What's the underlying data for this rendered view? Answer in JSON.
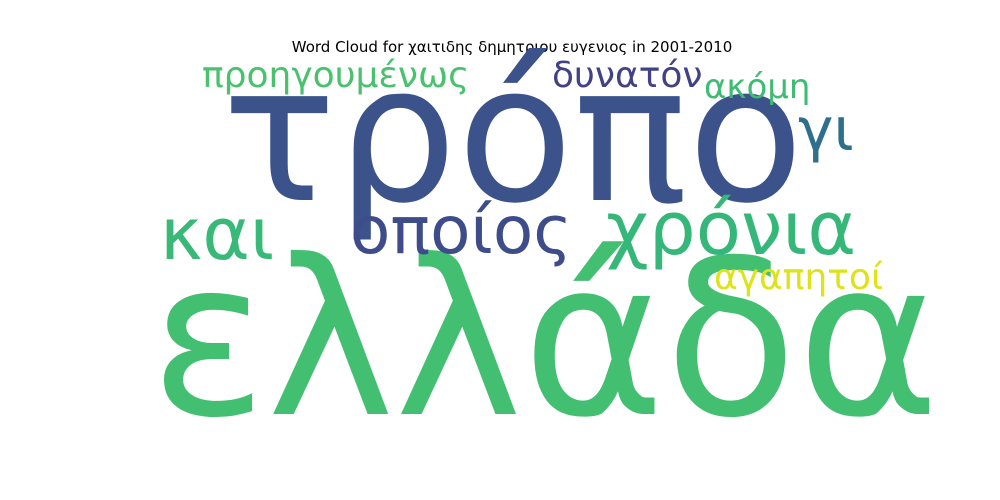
{
  "title": "Word Cloud for χαιτιδης δημητριου ευγενιος in 2001-2010",
  "words": [
    {
      "text": "ελλάδα",
      "color": "#43bf71"
    },
    {
      "text": "τρόπο",
      "color": "#3b528b"
    },
    {
      "text": "χρόνια",
      "color": "#35b779"
    },
    {
      "text": "οποίος",
      "color": "#3e4c8a"
    },
    {
      "text": "και",
      "color": "#38b977"
    },
    {
      "text": "γι",
      "color": "#2e6f8e"
    },
    {
      "text": "προηγουμένως",
      "color": "#4ac16d"
    },
    {
      "text": "δυνατόν",
      "color": "#424186"
    },
    {
      "text": "ακόμη",
      "color": "#3fbc73"
    },
    {
      "text": "αγαπητοί",
      "color": "#dde318"
    }
  ]
}
